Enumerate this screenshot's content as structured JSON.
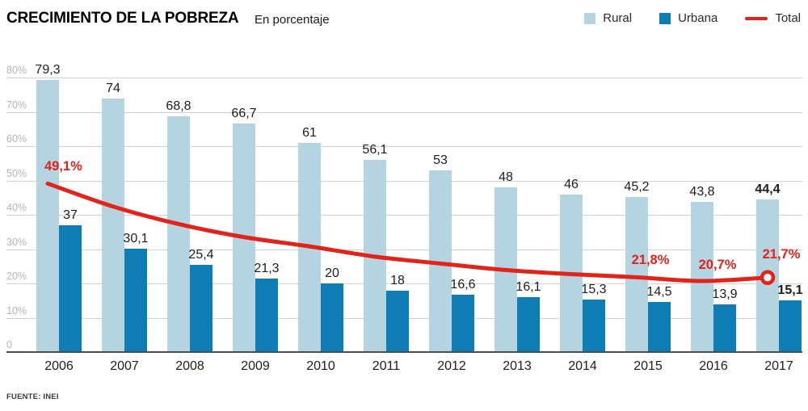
{
  "header": {
    "title": "CRECIMIENTO DE LA POBREZA",
    "subtitle": "En porcentaje"
  },
  "legend": [
    {
      "label": "Rural",
      "swatch": "square",
      "color": "#b4d4e1"
    },
    {
      "label": "Urbana",
      "swatch": "square",
      "color": "#0f7db5"
    },
    {
      "label": "Total",
      "swatch": "line",
      "color": "#e32219"
    }
  ],
  "source": "FUENTE: INEI",
  "colors": {
    "rural": "#b4d4e1",
    "urbana": "#0f7db5",
    "total": "#e32219",
    "grid": "#d2d2d2",
    "axis": "#4d4d4d",
    "tick_text": "#b4b4b4",
    "value_text": "#1d1d1b"
  },
  "chart_data": {
    "type": "bar",
    "title": "CRECIMIENTO DE LA POBREZA",
    "subtitle": "En porcentaje",
    "categories": [
      "2006",
      "2007",
      "2008",
      "2009",
      "2010",
      "2011",
      "2012",
      "2013",
      "2014",
      "2015",
      "2016",
      "2017"
    ],
    "emphasized_category": "2017",
    "ylim": [
      0,
      80
    ],
    "yticks": [
      "0",
      "10%",
      "20%",
      "30%",
      "40%",
      "50%",
      "60%",
      "70%",
      "80%"
    ],
    "grid": true,
    "legend_position": "top-right",
    "series": [
      {
        "name": "Rural",
        "type": "bar",
        "color": "#b4d4e1",
        "values": [
          79.3,
          74,
          68.8,
          66.7,
          61,
          56.1,
          53,
          48,
          46,
          45.2,
          43.8,
          44.4
        ],
        "labels": [
          "79,3",
          "74",
          "68,8",
          "66,7",
          "61",
          "56,1",
          "53",
          "48",
          "46",
          "45,2",
          "43,8",
          "44,4"
        ]
      },
      {
        "name": "Urbana",
        "type": "bar",
        "color": "#0f7db5",
        "values": [
          37,
          30.1,
          25.4,
          21.3,
          20,
          18,
          16.6,
          16.1,
          15.3,
          14.5,
          13.9,
          15.1
        ],
        "labels": [
          "37",
          "30,1",
          "25,4",
          "21,3",
          "20",
          "18",
          "16,6",
          "16,1",
          "15,3",
          "14,5",
          "13,9",
          "15,1"
        ]
      },
      {
        "name": "Total",
        "type": "line",
        "color": "#e32219",
        "values": [
          49.1,
          42.4,
          37.3,
          33.5,
          30.8,
          27.8,
          25.8,
          23.9,
          22.7,
          21.8,
          20.7,
          21.7
        ],
        "labeled_points_note": "only 2006, 2015, 2016 and 2017 carry visible labels; other values estimated from the curve",
        "annotations": [
          {
            "index": 0,
            "text": "49,1%",
            "bold": false,
            "anchor": "left",
            "dx": -4,
            "dy": -30
          },
          {
            "index": 9,
            "text": "21,8%",
            "bold": false,
            "anchor": "center",
            "dx": 17,
            "dy": -30
          },
          {
            "index": 10,
            "text": "20,7%",
            "bold": false,
            "anchor": "center",
            "dx": 19,
            "dy": -29
          },
          {
            "index": 11,
            "text": "21,7%",
            "bold": true,
            "anchor": "center",
            "dx": 17,
            "dy": -38
          }
        ],
        "end_marker": "open-circle"
      }
    ]
  }
}
